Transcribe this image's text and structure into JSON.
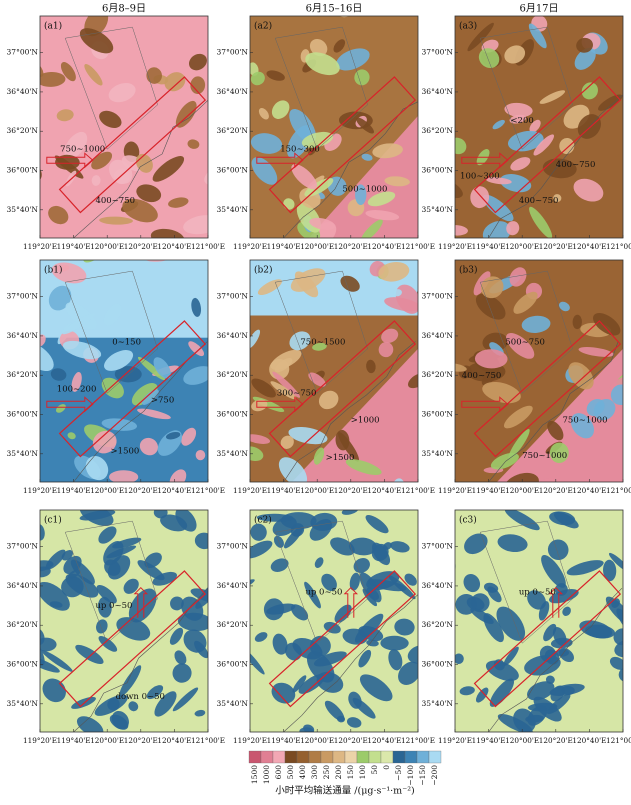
{
  "column_headers": [
    "6月8–9日",
    "6月15–16日",
    "6月17日"
  ],
  "y_axis_labels": [
    "37°00'N",
    "36°40'N",
    "36°20'N",
    "36°00'N",
    "35°40'N"
  ],
  "x_axis_labels": [
    "119°20'E",
    "119°40'E",
    "120°00'E",
    "120°20'E",
    "120°40'E",
    "121°00'E"
  ],
  "panels": [
    {
      "label": "(a1)",
      "annotations": [
        "750~1000",
        "400~750"
      ]
    },
    {
      "label": "(a2)",
      "annotations": [
        "150~300",
        "500~1000"
      ]
    },
    {
      "label": "(a3)",
      "annotations": [
        "<200",
        "100~300",
        "400~750",
        "400~750"
      ]
    },
    {
      "label": "(b1)",
      "annotations": [
        "0~150",
        "100~200",
        ">750",
        ">1500"
      ]
    },
    {
      "label": "(b2)",
      "annotations": [
        "750~1500",
        "300~750",
        ">1000",
        ">1500"
      ]
    },
    {
      "label": "(b3)",
      "annotations": [
        "500~750",
        "400~750",
        "750~1000",
        "750~1000"
      ]
    },
    {
      "label": "(c1)",
      "annotations": [
        "up 0~50",
        "down 0~50"
      ]
    },
    {
      "label": "(c2)",
      "annotations": [
        "up 0~50"
      ]
    },
    {
      "label": "(c3)",
      "annotations": [
        "up 0~50"
      ]
    }
  ],
  "colorbar": {
    "title": "小时平均输送通量 /(μg·s⁻¹·m⁻²)",
    "labels": [
      "1500",
      "1000",
      "600",
      "500",
      "400",
      "300",
      "250",
      "200",
      "150",
      "100",
      "50",
      "0",
      "−50",
      "−100",
      "−150",
      "−200"
    ],
    "colors": [
      "#c9566f",
      "#e07f93",
      "#f2a7b4",
      "#7a4a22",
      "#95602f",
      "#b07c46",
      "#c99a63",
      "#ddb784",
      "#ecd3a8",
      "#9ccb6a",
      "#c3df8e",
      "#dbe8ab",
      "#2a6593",
      "#3d83b4",
      "#6fb0d8",
      "#a9daf2"
    ]
  }
}
